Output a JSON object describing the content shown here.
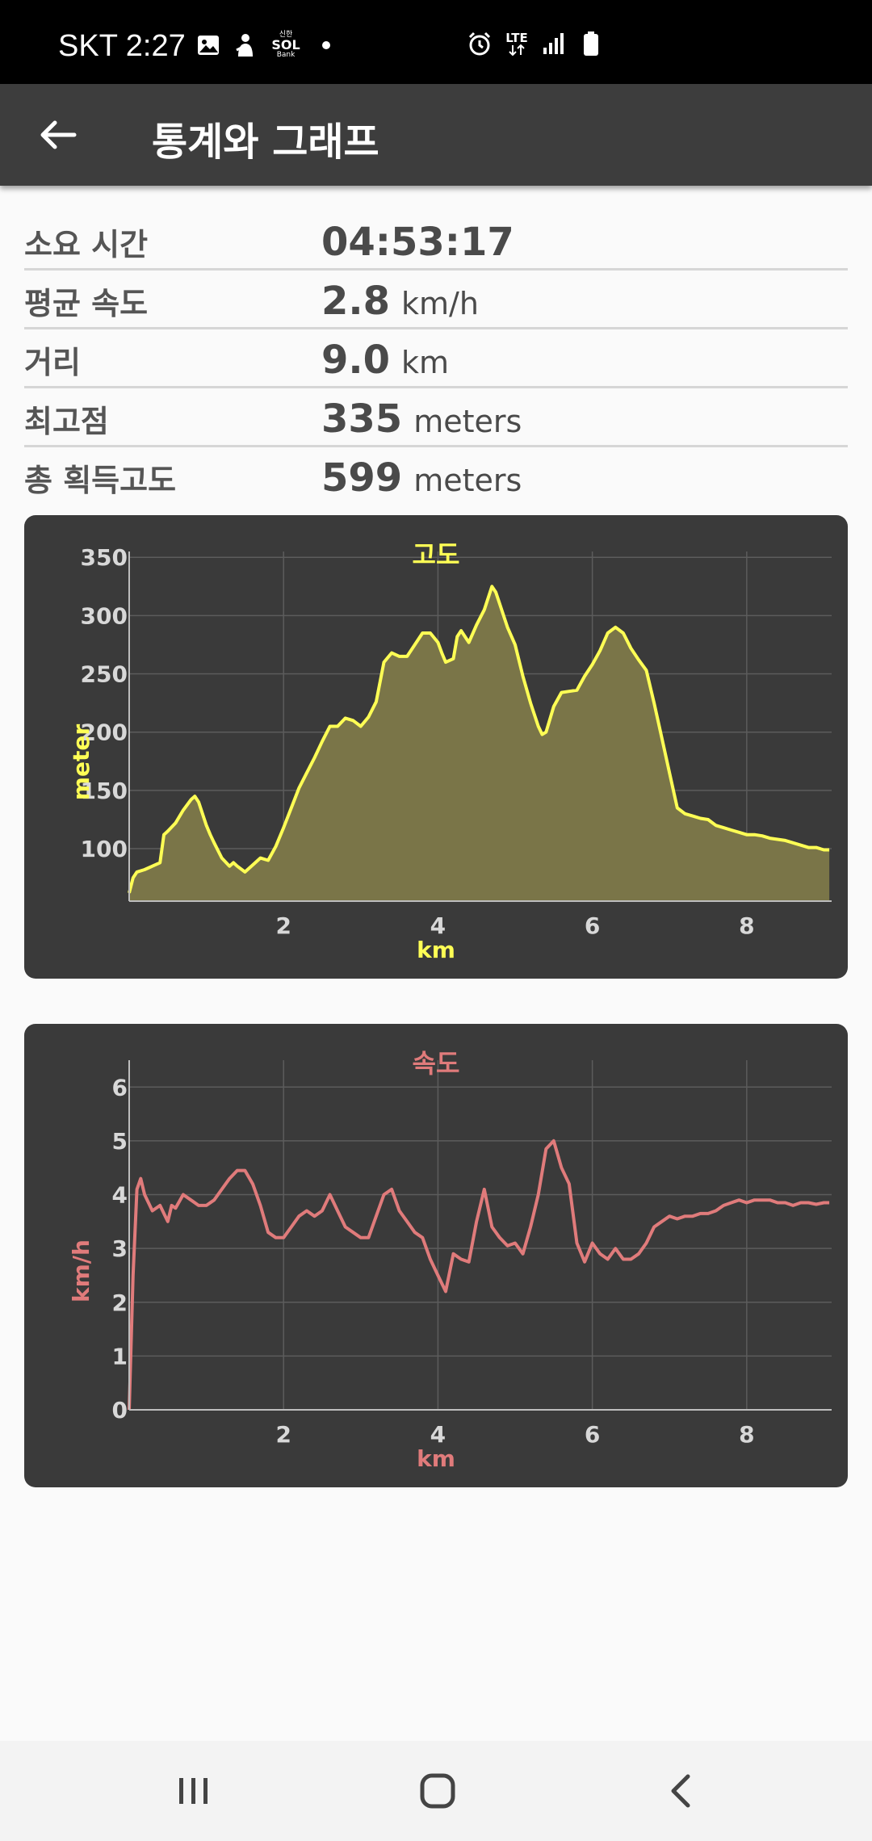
{
  "status_bar": {
    "time": "SKT 2:27",
    "bank_top": "신한",
    "bank_mid": "SOL",
    "bank_bottom": "Bank",
    "lte": "LTE",
    "icons": [
      "gallery-icon",
      "person-icon",
      "sol-bank-icon",
      "dot-icon",
      "alarm-icon",
      "lte-icon",
      "signal-icon",
      "battery-icon"
    ]
  },
  "app_bar": {
    "title": "통계와 그래프"
  },
  "stats": [
    {
      "label": "소요 시간",
      "value": "04:53:17",
      "unit": ""
    },
    {
      "label": "평균 속도",
      "value": "2.8",
      "unit": "km/h"
    },
    {
      "label": "거리",
      "value": "9.0",
      "unit": "km"
    },
    {
      "label": "최고점",
      "value": "335",
      "unit": "meters"
    },
    {
      "label": "총 획득고도",
      "value": "599",
      "unit": "meters"
    }
  ],
  "chart_data": [
    {
      "type": "area",
      "title": "고도",
      "xlabel": "km",
      "ylabel": "meter",
      "color": "#ffff55",
      "fill": "#7a7548",
      "xlim": [
        0,
        9.1
      ],
      "ylim": [
        55,
        355
      ],
      "xticks": [
        2,
        4,
        6,
        8
      ],
      "yticks": [
        100,
        150,
        200,
        250,
        300,
        350
      ],
      "x": [
        0,
        0.05,
        0.1,
        0.2,
        0.3,
        0.4,
        0.45,
        0.5,
        0.6,
        0.7,
        0.8,
        0.85,
        0.9,
        0.95,
        1.0,
        1.05,
        1.1,
        1.2,
        1.3,
        1.35,
        1.4,
        1.5,
        1.6,
        1.7,
        1.8,
        1.9,
        2.0,
        2.1,
        2.2,
        2.3,
        2.4,
        2.5,
        2.6,
        2.7,
        2.8,
        2.9,
        3.0,
        3.1,
        3.2,
        3.3,
        3.4,
        3.5,
        3.6,
        3.7,
        3.8,
        3.9,
        4.0,
        4.05,
        4.1,
        4.2,
        4.25,
        4.3,
        4.4,
        4.5,
        4.6,
        4.7,
        4.75,
        4.8,
        4.9,
        5.0,
        5.1,
        5.2,
        5.3,
        5.35,
        5.4,
        5.5,
        5.6,
        5.7,
        5.8,
        5.9,
        6.0,
        6.1,
        6.2,
        6.3,
        6.4,
        6.5,
        6.6,
        6.7,
        6.8,
        6.9,
        7.0,
        7.1,
        7.2,
        7.3,
        7.4,
        7.5,
        7.6,
        7.7,
        7.8,
        7.9,
        8.0,
        8.1,
        8.2,
        8.3,
        8.4,
        8.5,
        8.6,
        8.7,
        8.8,
        8.9,
        9.0,
        9.07
      ],
      "y": [
        62,
        75,
        80,
        82,
        85,
        88,
        112,
        115,
        122,
        133,
        142,
        145,
        140,
        130,
        120,
        112,
        105,
        92,
        85,
        88,
        85,
        80,
        86,
        92,
        90,
        102,
        118,
        135,
        152,
        165,
        178,
        192,
        205,
        205,
        212,
        210,
        205,
        213,
        226,
        260,
        268,
        265,
        265,
        275,
        285,
        285,
        277,
        268,
        260,
        263,
        282,
        287,
        277,
        292,
        305,
        325,
        320,
        310,
        290,
        275,
        248,
        225,
        205,
        198,
        200,
        222,
        234,
        235,
        236,
        248,
        258,
        270,
        285,
        290,
        285,
        272,
        262,
        253,
        225,
        195,
        165,
        135,
        130,
        128,
        126,
        125,
        120,
        118,
        116,
        114,
        112,
        112,
        111,
        109,
        108,
        107,
        105,
        103,
        101,
        101,
        99,
        99
      ]
    },
    {
      "type": "line",
      "title": "속도",
      "xlabel": "km",
      "ylabel": "km/h",
      "color": "#e07b7b",
      "xlim": [
        0,
        9.1
      ],
      "ylim": [
        0,
        6.5
      ],
      "xticks": [
        2,
        4,
        6,
        8
      ],
      "yticks": [
        0,
        1,
        2,
        3,
        4,
        5,
        6
      ],
      "x": [
        0,
        0.05,
        0.1,
        0.15,
        0.2,
        0.3,
        0.4,
        0.5,
        0.55,
        0.6,
        0.7,
        0.8,
        0.9,
        1.0,
        1.1,
        1.2,
        1.3,
        1.4,
        1.5,
        1.6,
        1.7,
        1.8,
        1.9,
        2.0,
        2.1,
        2.2,
        2.3,
        2.4,
        2.5,
        2.6,
        2.7,
        2.8,
        2.9,
        3.0,
        3.1,
        3.2,
        3.3,
        3.4,
        3.5,
        3.6,
        3.7,
        3.8,
        3.9,
        4.0,
        4.1,
        4.2,
        4.3,
        4.4,
        4.5,
        4.6,
        4.7,
        4.8,
        4.9,
        5.0,
        5.1,
        5.2,
        5.3,
        5.4,
        5.5,
        5.6,
        5.7,
        5.8,
        5.9,
        6.0,
        6.1,
        6.2,
        6.3,
        6.4,
        6.5,
        6.6,
        6.7,
        6.8,
        6.9,
        7.0,
        7.1,
        7.2,
        7.3,
        7.4,
        7.5,
        7.6,
        7.7,
        7.8,
        7.9,
        8.0,
        8.1,
        8.2,
        8.3,
        8.4,
        8.5,
        8.6,
        8.7,
        8.8,
        8.9,
        9.0,
        9.07
      ],
      "y": [
        0,
        2.5,
        4.1,
        4.3,
        4.0,
        3.7,
        3.8,
        3.5,
        3.8,
        3.75,
        4.0,
        3.9,
        3.8,
        3.8,
        3.9,
        4.1,
        4.3,
        4.45,
        4.45,
        4.2,
        3.8,
        3.3,
        3.2,
        3.2,
        3.4,
        3.6,
        3.7,
        3.6,
        3.7,
        4.0,
        3.7,
        3.4,
        3.3,
        3.2,
        3.2,
        3.6,
        4.0,
        4.1,
        3.7,
        3.5,
        3.3,
        3.2,
        2.8,
        2.5,
        2.2,
        2.9,
        2.8,
        2.75,
        3.5,
        4.1,
        3.4,
        3.2,
        3.05,
        3.1,
        2.9,
        3.4,
        4.0,
        4.85,
        5.0,
        4.5,
        4.2,
        3.1,
        2.75,
        3.1,
        2.9,
        2.8,
        3.0,
        2.8,
        2.8,
        2.9,
        3.1,
        3.4,
        3.5,
        3.6,
        3.55,
        3.6,
        3.6,
        3.65,
        3.65,
        3.7,
        3.8,
        3.85,
        3.9,
        3.85,
        3.9,
        3.9,
        3.9,
        3.85,
        3.85,
        3.8,
        3.85,
        3.85,
        3.82,
        3.85,
        3.85
      ]
    }
  ]
}
